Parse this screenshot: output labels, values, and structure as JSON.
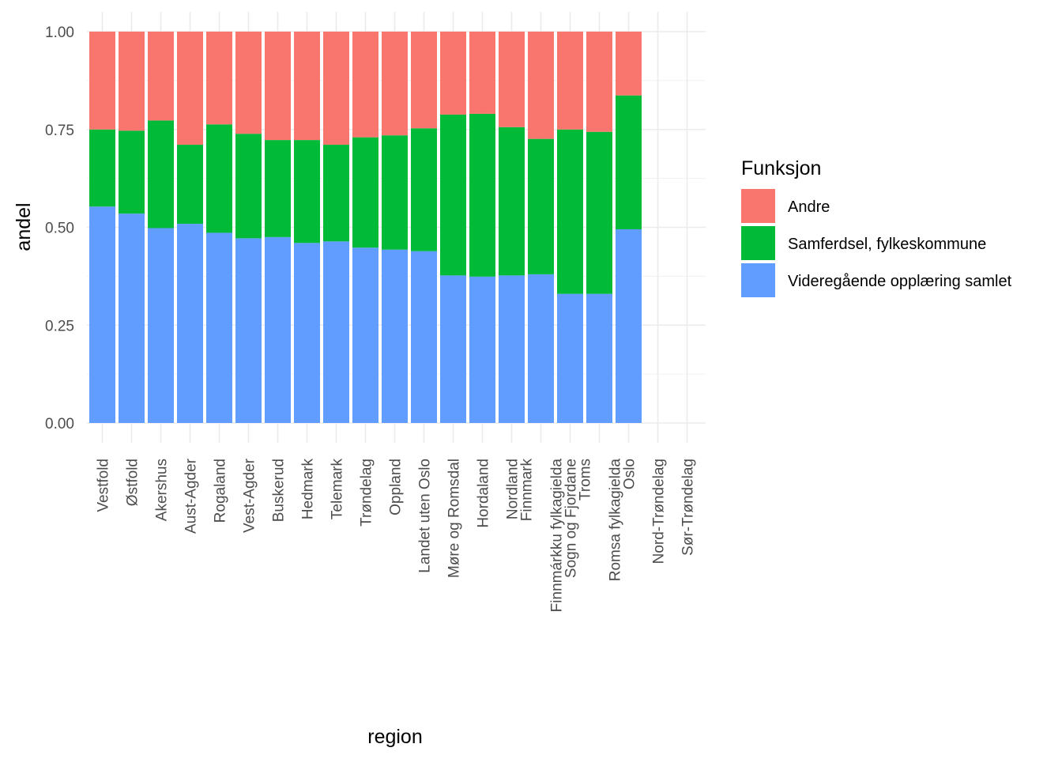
{
  "chart_data": {
    "type": "bar",
    "stacked": true,
    "xlabel": "region",
    "ylabel": "andel",
    "ylim": [
      0,
      1
    ],
    "yticks": [
      0,
      0.25,
      0.5,
      0.75,
      1
    ],
    "ytick_labels": [
      "0.00",
      "0.25",
      "0.50",
      "0.75",
      "1.00"
    ],
    "grid": true,
    "legend_position": "right",
    "legend_title": "Funksjon",
    "categories": [
      "Vestfold",
      "Østfold",
      "Akershus",
      "Aust-Agder",
      "Rogaland",
      "Vest-Agder",
      "Buskerud",
      "Hedmark",
      "Telemark",
      "Trøndelag",
      "Oppland",
      "Landet uten Oslo",
      "Møre og Romsdal",
      "Hordaland",
      "Nordland",
      "Finnmark   Finnmárkku fylkagielda",
      "Sogn og Fjordane",
      "Troms   Romsa fylkagielda",
      "Oslo",
      "Nord-Trøndelag",
      "Sør-Trøndelag"
    ],
    "category_lines": [
      [
        "Vestfold"
      ],
      [
        "Østfold"
      ],
      [
        "Akershus"
      ],
      [
        "Aust-Agder"
      ],
      [
        "Rogaland"
      ],
      [
        "Vest-Agder"
      ],
      [
        "Buskerud"
      ],
      [
        "Hedmark"
      ],
      [
        "Telemark"
      ],
      [
        "Trøndelag"
      ],
      [
        "Oppland"
      ],
      [
        "Landet uten Oslo"
      ],
      [
        "Møre og Romsdal"
      ],
      [
        "Hordaland"
      ],
      [
        "Nordland"
      ],
      [
        "Finnmark",
        "Finnmárkku fylkagielda"
      ],
      [
        "Sogn og Fjordane"
      ],
      [
        "Troms",
        "Romsa fylkagielda"
      ],
      [
        "Oslo"
      ],
      [
        "Nord-Trøndelag"
      ],
      [
        "Sør-Trøndelag"
      ]
    ],
    "series": [
      {
        "name": "Videregående opplæring samlet",
        "color": "#619CFF",
        "values": [
          0.553,
          0.535,
          0.498,
          0.509,
          0.486,
          0.472,
          0.475,
          0.46,
          0.464,
          0.448,
          0.443,
          0.439,
          0.377,
          0.374,
          0.377,
          0.38,
          0.33,
          0.33,
          0.495,
          null,
          null
        ]
      },
      {
        "name": "Samferdsel, fylkeskommune",
        "color": "#00BA38",
        "values": [
          0.197,
          0.212,
          0.275,
          0.202,
          0.277,
          0.267,
          0.248,
          0.263,
          0.247,
          0.282,
          0.292,
          0.314,
          0.411,
          0.416,
          0.379,
          0.346,
          0.42,
          0.414,
          0.342,
          null,
          null
        ]
      },
      {
        "name": "Andre",
        "color": "#F8766D",
        "values": [
          0.25,
          0.253,
          0.227,
          0.289,
          0.237,
          0.261,
          0.277,
          0.277,
          0.289,
          0.27,
          0.265,
          0.247,
          0.212,
          0.21,
          0.244,
          0.274,
          0.25,
          0.256,
          0.163,
          null,
          null
        ]
      }
    ],
    "legend_order": [
      "Andre",
      "Samferdsel, fylkeskommune",
      "Videregående opplæring samlet"
    ]
  }
}
